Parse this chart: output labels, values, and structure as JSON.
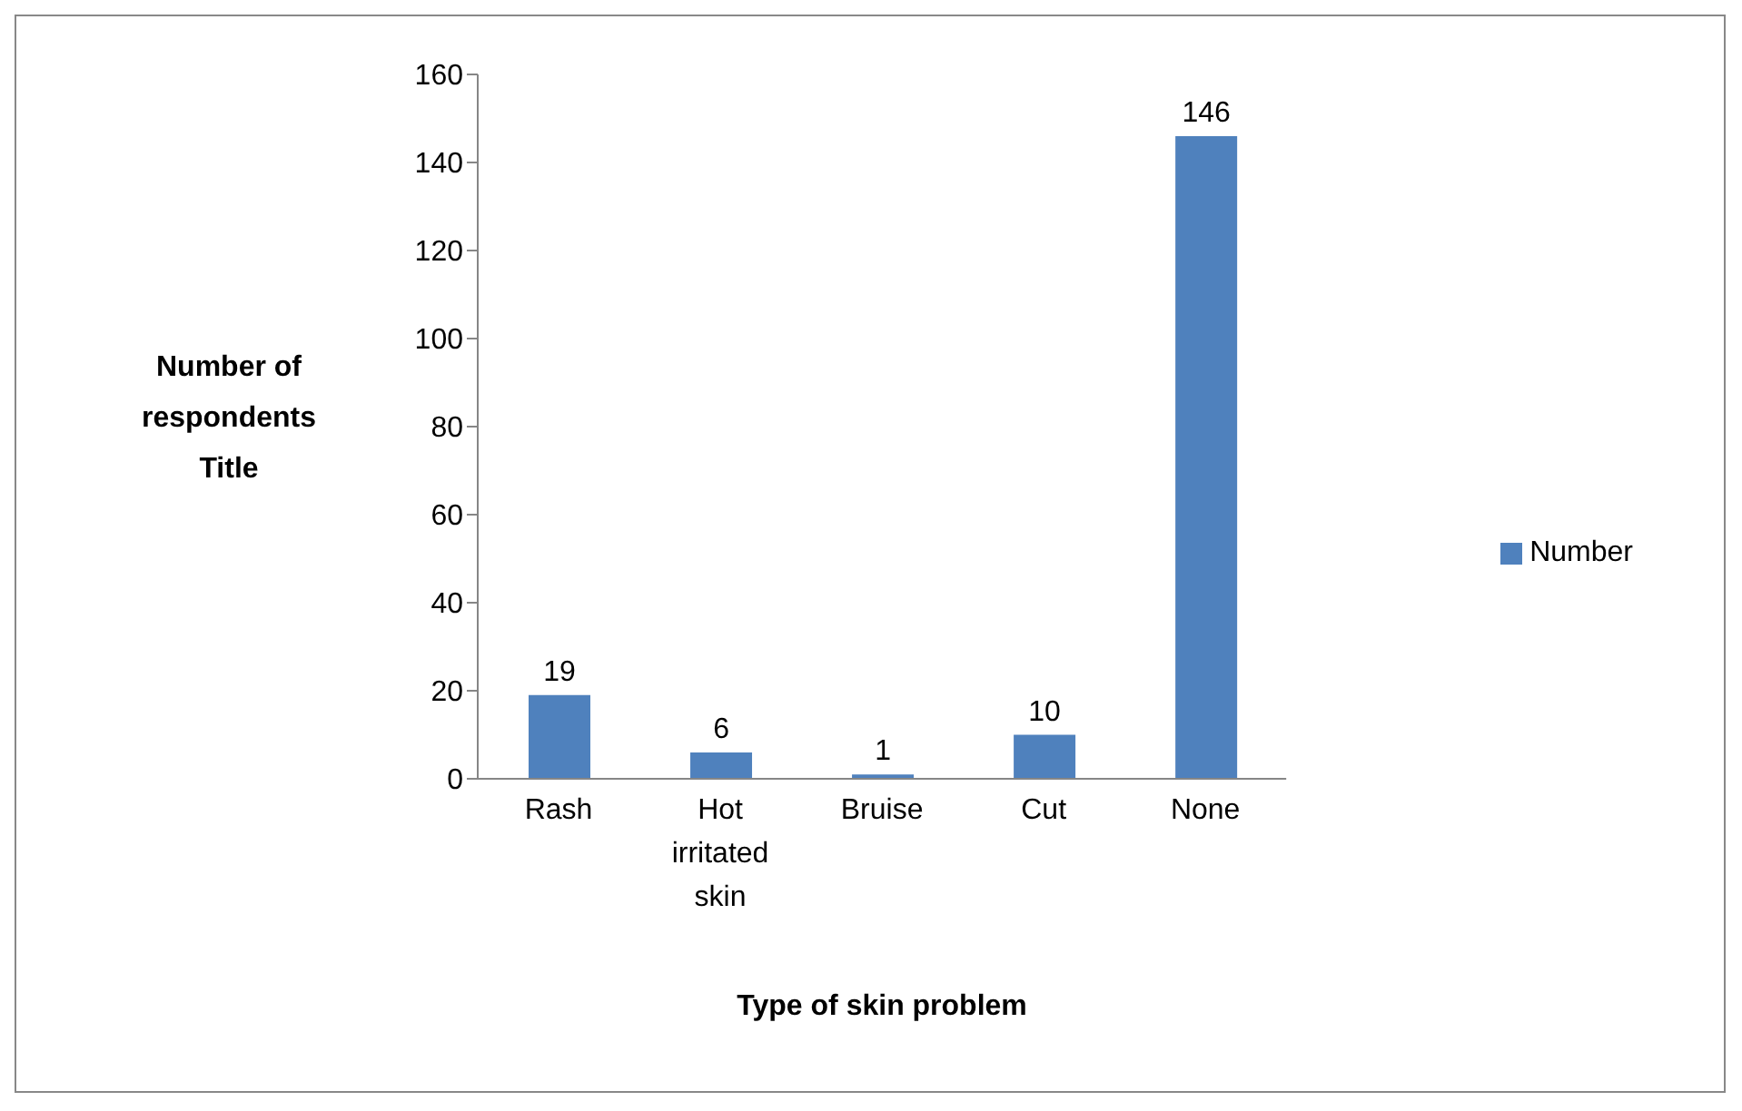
{
  "chart_data": {
    "type": "bar",
    "xlabel": "Type of skin problem",
    "ylabel": "Number of respondents Title",
    "categories": [
      "Rash",
      "Hot irritated skin",
      "Bruise",
      "Cut",
      "None"
    ],
    "series": [
      {
        "name": "Number",
        "color": "#4f81bd",
        "values": [
          19,
          6,
          1,
          10,
          146
        ]
      }
    ],
    "ylim": [
      0,
      160
    ],
    "yticks": [
      0,
      20,
      40,
      60,
      80,
      100,
      120,
      140,
      160
    ],
    "legend": "right",
    "data_labels": true
  }
}
